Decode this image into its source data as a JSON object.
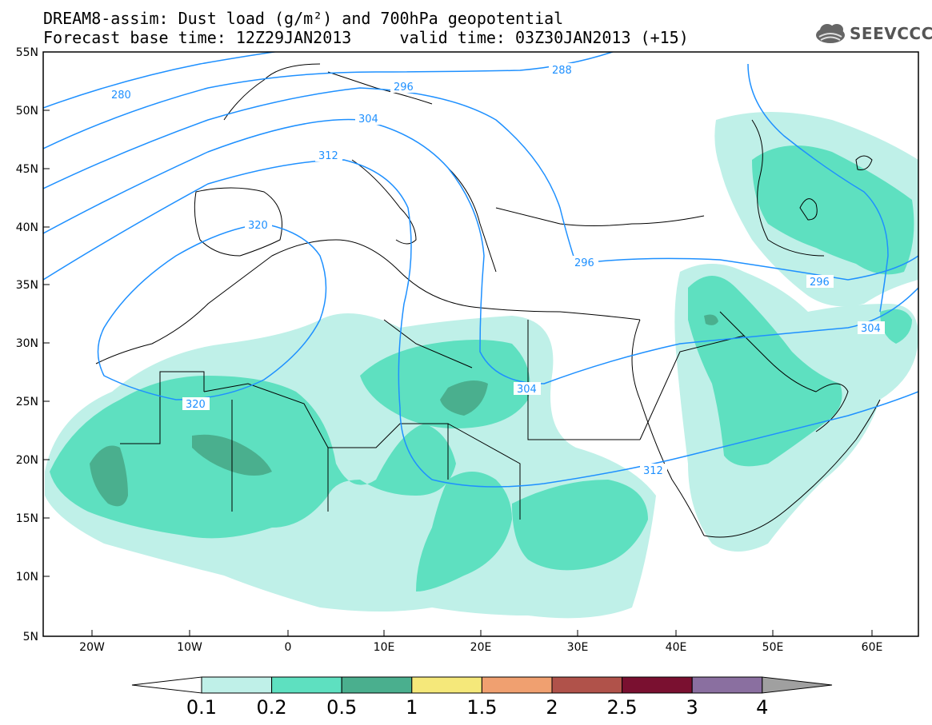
{
  "header": {
    "title_line1": "DREAM8-assim: Dust load (g/m²) and 700hPa geopotential",
    "title_line2": "Forecast base time: 12Z29JAN2013     valid time: 03Z30JAN2013 (+15)",
    "logo_text": "SEEVCCC"
  },
  "map": {
    "lon_ticks": [
      "20W",
      "10W",
      "0",
      "10E",
      "20E",
      "30E",
      "40E",
      "50E",
      "60E"
    ],
    "lat_ticks": [
      "55N",
      "50N",
      "45N",
      "40N",
      "35N",
      "30N",
      "25N",
      "20N",
      "15N",
      "10N",
      "5N"
    ],
    "contour_labels": [
      "280",
      "288",
      "296",
      "296",
      "296",
      "304",
      "304",
      "304",
      "312",
      "312",
      "320",
      "320"
    ],
    "contour_color": "#1e90ff",
    "coast_color": "#000000"
  },
  "colorbar": {
    "labels": [
      "0.1",
      "0.2",
      "0.5",
      "1",
      "1.5",
      "2",
      "2.5",
      "3",
      "4"
    ],
    "colors": [
      "#ffffff",
      "#bff0e8",
      "#5ee0c0",
      "#4aaf8e",
      "#f5e87a",
      "#f0a070",
      "#b0524a",
      "#7a1030",
      "#8a6fa0",
      "#a0a0a0"
    ]
  }
}
